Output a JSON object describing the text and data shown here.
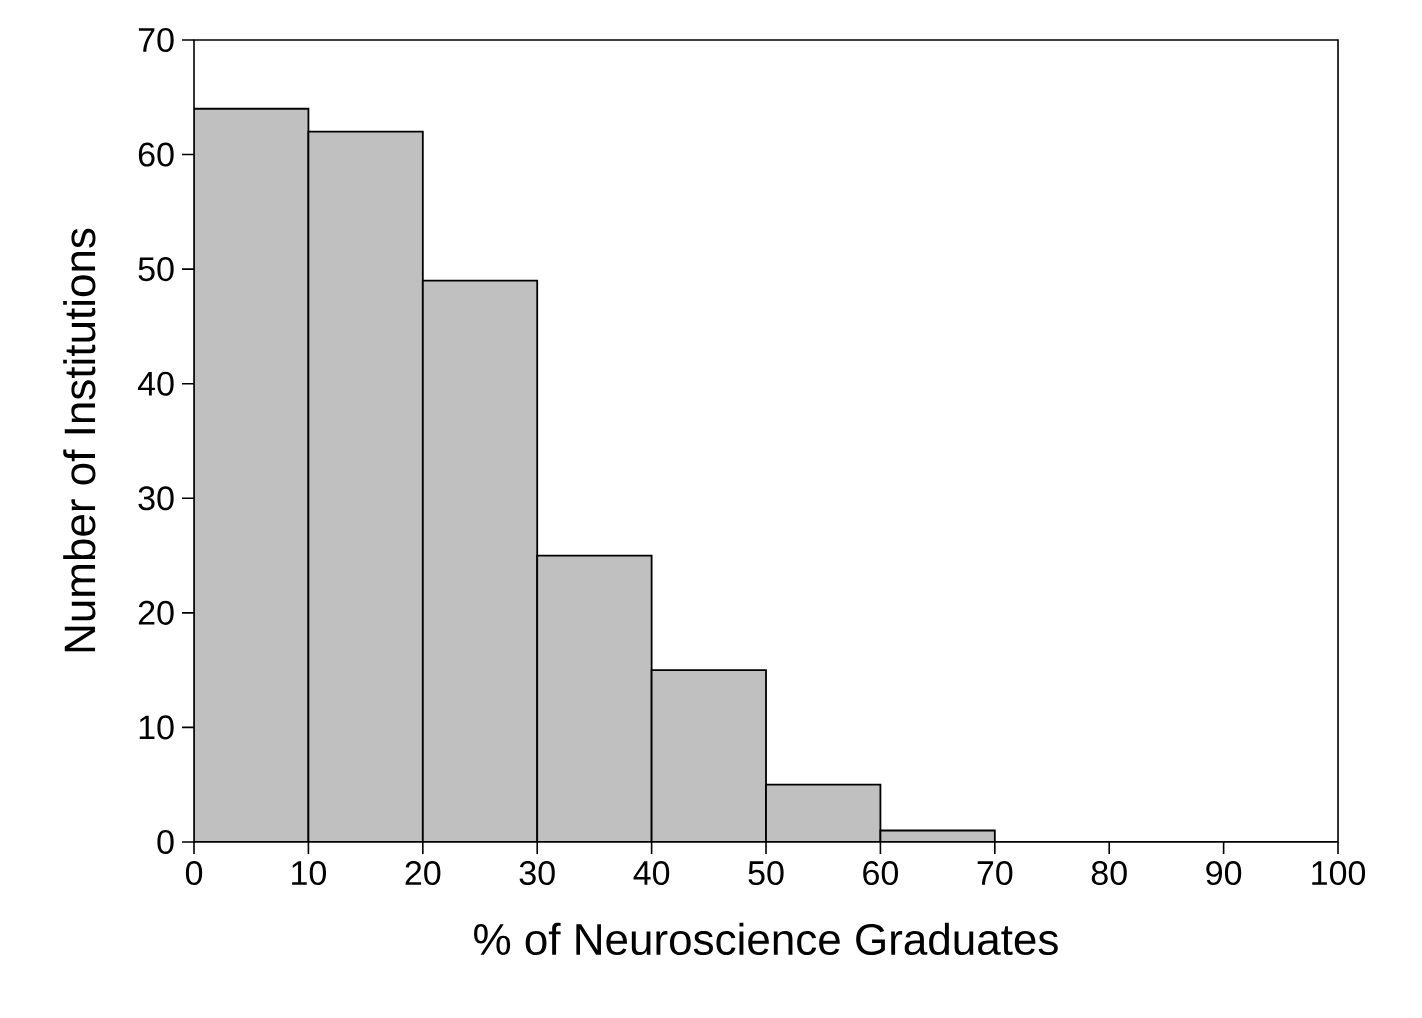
{
  "chart_data": {
    "type": "histogram",
    "xlabel": "% of Neuroscience Graduates",
    "ylabel": "Number of Institutions",
    "bins": [
      0,
      10,
      20,
      30,
      40,
      50,
      60,
      70,
      80,
      90,
      100
    ],
    "values": [
      64,
      62,
      49,
      25,
      15,
      5,
      1,
      0,
      0,
      0
    ],
    "color": "#c0c0c0",
    "xlim": [
      0,
      100
    ],
    "xticks": [
      0,
      10,
      20,
      30,
      40,
      50,
      60,
      70,
      80,
      90,
      100
    ],
    "ylim": [
      0,
      70
    ],
    "yticks": [
      0,
      10,
      20,
      30,
      40,
      50,
      60,
      70
    ],
    "grid": false
  }
}
